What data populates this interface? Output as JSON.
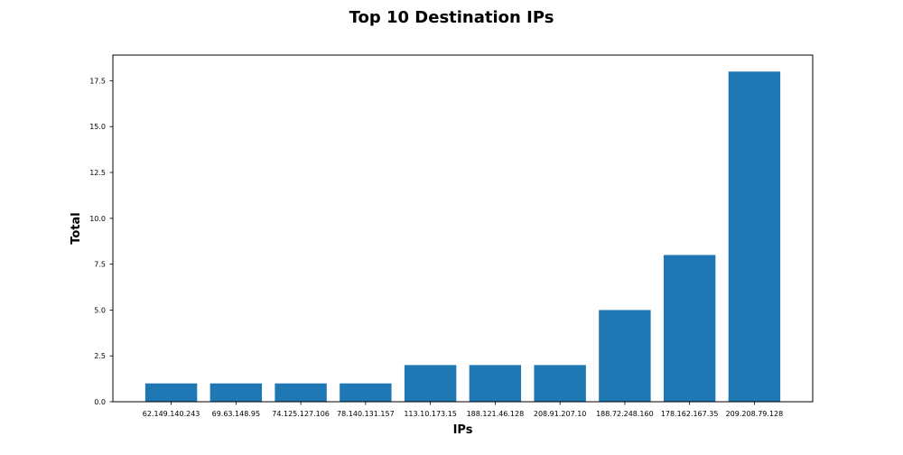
{
  "chart_data": {
    "type": "bar",
    "title": "Top 10 Destination IPs",
    "xlabel": "IPs",
    "ylabel": "Total",
    "categories": [
      "62.149.140.243",
      "69.63.148.95",
      "74.125.127.106",
      "78.140.131.157",
      "113.10.173.15",
      "188.121.46.128",
      "208.91.207.10",
      "188.72.248.160",
      "178.162.167.35",
      "209.208.79.128"
    ],
    "values": [
      1,
      1,
      1,
      1,
      2,
      2,
      2,
      5,
      8,
      18
    ],
    "ylim": [
      0,
      18.9
    ],
    "yticks": [
      0.0,
      2.5,
      5.0,
      7.5,
      10.0,
      12.5,
      15.0,
      17.5
    ],
    "ytick_labels": [
      "0.0",
      "2.5",
      "5.0",
      "7.5",
      "10.0",
      "12.5",
      "15.0",
      "17.5"
    ],
    "grid": false,
    "bar_color": "#1f77b4"
  }
}
